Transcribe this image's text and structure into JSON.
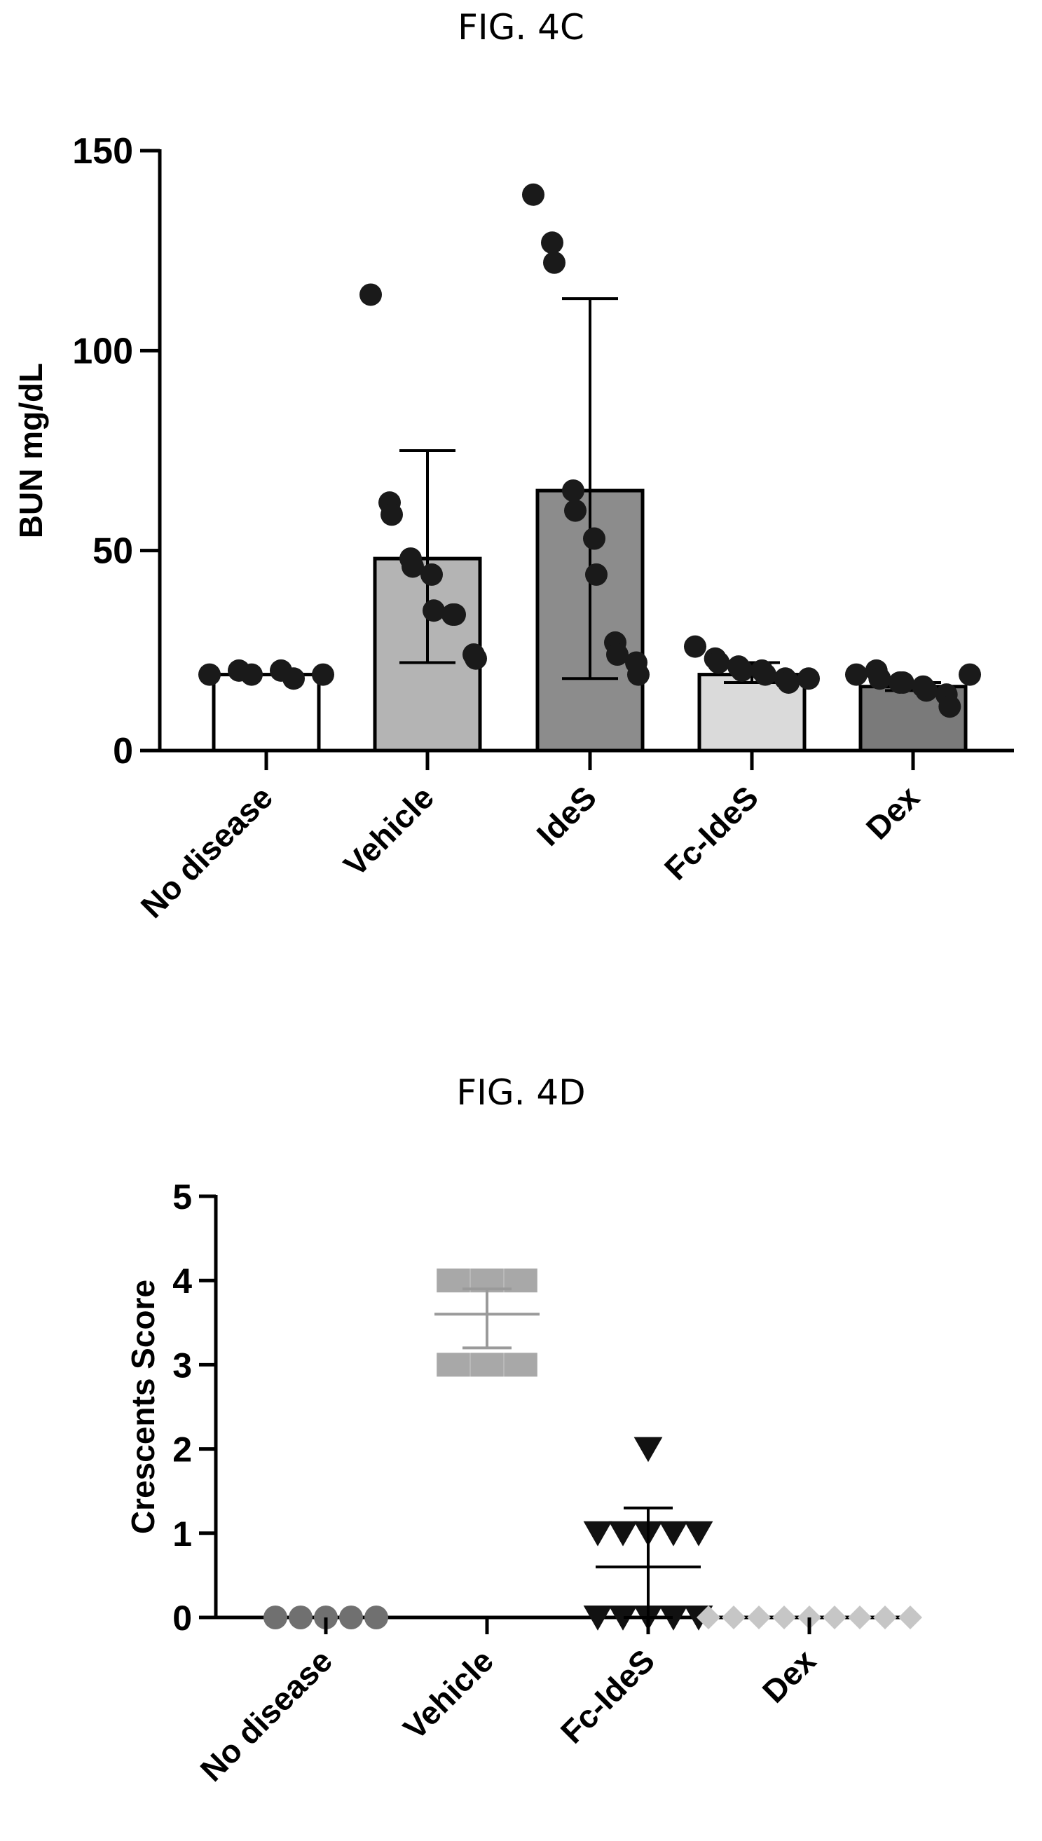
{
  "figures": {
    "c_title": "FIG. 4C",
    "d_title": "FIG. 4D"
  },
  "chart_data": [
    {
      "type": "bar",
      "title": "FIG. 4C",
      "xlabel": "",
      "ylabel": "BUN mg/dL",
      "ylim": [
        0,
        150
      ],
      "yticks": [
        "0",
        "50",
        "100",
        "150"
      ],
      "categories": [
        "No disease",
        "Vehicle",
        "IdeS",
        "Fc-IdeS",
        "Dex"
      ],
      "values": [
        19,
        48,
        65,
        19,
        16
      ],
      "error_high": [
        19,
        75,
        113,
        22,
        17
      ],
      "error_low": [
        19,
        22,
        18,
        17,
        15
      ],
      "points": [
        [
          19,
          20,
          19,
          20,
          18,
          19
        ],
        [
          114,
          62,
          59,
          48,
          46,
          44,
          35,
          34,
          34,
          24,
          23
        ],
        [
          139,
          127,
          122,
          65,
          60,
          53,
          44,
          27,
          24,
          22,
          19
        ],
        [
          26,
          23,
          22,
          21,
          20,
          20,
          19,
          18,
          17,
          18
        ],
        [
          19,
          20,
          18,
          17,
          17,
          16,
          15,
          14,
          11,
          19
        ]
      ],
      "colors": [
        "#ffffff",
        "#b4b4b4",
        "#8c8c8c",
        "#dadada",
        "#7a7a7a"
      ]
    },
    {
      "type": "scatter",
      "title": "FIG. 4D",
      "xlabel": "",
      "ylabel": "Crescents Score",
      "ylim": [
        0,
        5
      ],
      "yticks": [
        "0",
        "1",
        "2",
        "3",
        "4",
        "5"
      ],
      "categories": [
        "No disease",
        "Vehicle",
        "Fc-IdeS",
        "Dex"
      ],
      "mean": [
        0,
        3.6,
        0.6,
        0
      ],
      "sd_high": [
        0,
        3.9,
        1.3,
        0
      ],
      "sd_low": [
        0,
        3.2,
        0,
        0
      ],
      "markers": [
        "circle",
        "square",
        "triangle-down",
        "diamond"
      ],
      "colors": [
        "#707070",
        "#a8a8a8",
        "#111111",
        "#c6c6c6"
      ],
      "points": [
        [
          0,
          0,
          0,
          0,
          0
        ],
        [
          4,
          4,
          4,
          3,
          3,
          3
        ],
        [
          2,
          1,
          1,
          1,
          1,
          1,
          0,
          0,
          0,
          0,
          0
        ],
        [
          0,
          0,
          0,
          0,
          0,
          0,
          0,
          0,
          0
        ]
      ]
    }
  ]
}
